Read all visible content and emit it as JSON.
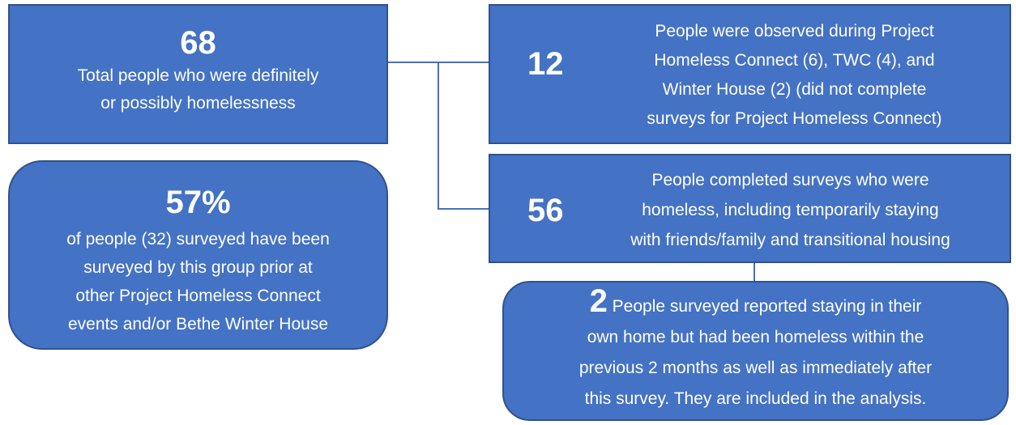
{
  "nodes": [
    {
      "number": "68",
      "lines": [
        "Total people who were definitely",
        "or possibly homelessness"
      ]
    },
    {
      "number": "57%",
      "lines": [
        "of people (32) surveyed have been",
        "surveyed by this group prior at",
        "other Project Homeless Connect",
        "events and/or Bethe Winter House"
      ]
    },
    {
      "number": "12",
      "lines": [
        "People were observed during Project",
        "Homeless Connect (6), TWC (4), and",
        "Winter House (2) (did not complete",
        "surveys for Project Homeless Connect)"
      ]
    },
    {
      "number": "56",
      "lines": [
        "People completed surveys who were",
        "homeless, including temporarily staying",
        "with friends/family and transitional housing"
      ]
    },
    {
      "number": "2",
      "lines": [
        "People surveyed reported staying in their",
        "own home but had been homeless within the",
        "previous 2 months as well as immediately after",
        "this survey. They are included in the analysis."
      ]
    }
  ]
}
